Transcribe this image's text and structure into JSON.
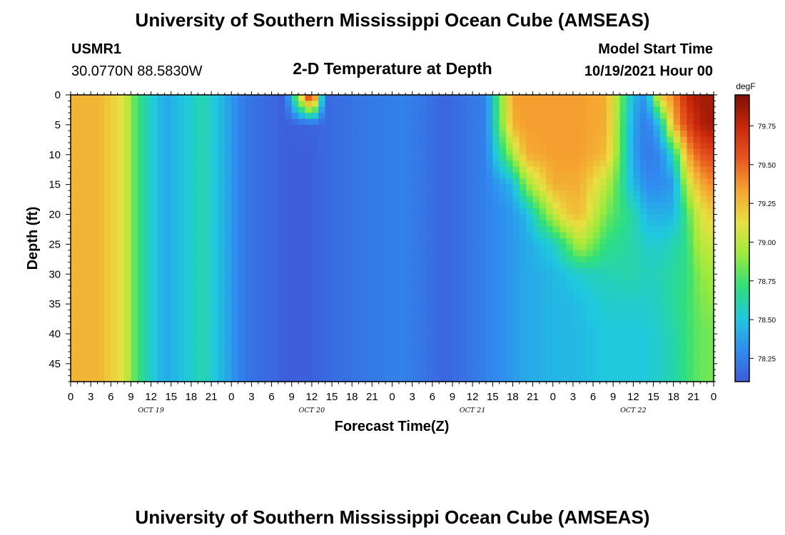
{
  "header": {
    "title": "University of Southern Mississippi Ocean Cube (AMSEAS)",
    "station": "USMR1",
    "coords": "30.0770N  88.5830W",
    "plot_title": "2-D Temperature at Depth",
    "model_label": "Model Start Time",
    "model_time": "10/19/2021 Hour 00"
  },
  "footer": {
    "title": "University of Southern Mississippi Ocean Cube (AMSEAS)"
  },
  "chart_data": {
    "type": "heatmap",
    "xlabel": "Forecast Time(Z)",
    "ylabel": "Depth (ft)",
    "x_range_hours": [
      0,
      96
    ],
    "ylim": [
      0,
      48
    ],
    "y_axis_inverted": true,
    "x_tick_labels": [
      "0",
      "3",
      "6",
      "9",
      "12",
      "15",
      "18",
      "21",
      "0",
      "3",
      "6",
      "9",
      "12",
      "15",
      "18",
      "21",
      "0",
      "3",
      "6",
      "9",
      "12",
      "15",
      "18",
      "21",
      "0",
      "3",
      "6",
      "9",
      "12",
      "15",
      "18",
      "21",
      "0"
    ],
    "day_labels": [
      "OCT 19",
      "OCT 20",
      "OCT 21",
      "OCT 22"
    ],
    "y_ticks": [
      0,
      5,
      10,
      15,
      20,
      25,
      30,
      35,
      40,
      45
    ],
    "colorbar": {
      "unit": "degF",
      "range": [
        78.1,
        79.95
      ],
      "ticks": [
        78.25,
        78.5,
        78.75,
        79.0,
        79.25,
        79.5,
        79.75
      ],
      "tick_labels": [
        "78.25",
        "78.50",
        "78.75",
        "79.00",
        "79.25",
        "79.50",
        "79.75"
      ]
    },
    "colormap": [
      "#3e5bd8",
      "#2f8df0",
      "#1fc8df",
      "#2fe07a",
      "#9eea3c",
      "#e8e040",
      "#f5a430",
      "#e7561e",
      "#c8280a",
      "#7c0f05"
    ],
    "temperature_grid": {
      "time_hours": [
        0,
        4,
        8,
        10,
        14,
        20,
        26,
        32,
        36,
        38,
        44,
        50,
        56,
        62,
        66,
        68,
        72,
        74,
        76,
        80,
        84,
        86,
        88,
        90,
        92,
        94,
        96
      ],
      "depth_ft": [
        0,
        5,
        10,
        15,
        20,
        25,
        30,
        35,
        40,
        48
      ],
      "values_degF": [
        [
          79.28,
          79.28,
          79.28,
          79.28,
          79.28,
          79.28,
          79.28,
          79.28,
          79.28,
          79.28
        ],
        [
          79.28,
          79.28,
          79.28,
          79.28,
          79.28,
          79.28,
          79.28,
          79.28,
          79.28,
          79.28
        ],
        [
          79.1,
          79.1,
          79.1,
          79.1,
          79.1,
          79.1,
          79.1,
          79.1,
          79.1,
          79.1
        ],
        [
          78.72,
          78.72,
          78.72,
          78.72,
          78.72,
          78.72,
          78.72,
          78.72,
          78.72,
          78.72
        ],
        [
          78.4,
          78.4,
          78.4,
          78.4,
          78.4,
          78.4,
          78.4,
          78.4,
          78.4,
          78.4
        ],
        [
          78.62,
          78.62,
          78.62,
          78.62,
          78.62,
          78.62,
          78.62,
          78.62,
          78.62,
          78.62
        ],
        [
          78.22,
          78.22,
          78.22,
          78.22,
          78.22,
          78.22,
          78.22,
          78.22,
          78.22,
          78.22
        ],
        [
          78.12,
          78.12,
          78.12,
          78.12,
          78.12,
          78.12,
          78.12,
          78.12,
          78.12,
          78.12
        ],
        [
          79.9,
          78.14,
          78.12,
          78.12,
          78.12,
          78.12,
          78.12,
          78.12,
          78.12,
          78.12
        ],
        [
          78.16,
          78.16,
          78.16,
          78.16,
          78.16,
          78.16,
          78.16,
          78.16,
          78.16,
          78.16
        ],
        [
          78.22,
          78.22,
          78.22,
          78.22,
          78.22,
          78.22,
          78.22,
          78.22,
          78.22,
          78.22
        ],
        [
          78.26,
          78.26,
          78.26,
          78.26,
          78.26,
          78.26,
          78.26,
          78.26,
          78.26,
          78.26
        ],
        [
          78.14,
          78.14,
          78.14,
          78.14,
          78.14,
          78.14,
          78.14,
          78.14,
          78.14,
          78.14
        ],
        [
          78.26,
          78.26,
          78.26,
          78.26,
          78.26,
          78.26,
          78.26,
          78.26,
          78.26,
          78.26
        ],
        [
          79.35,
          79.3,
          78.95,
          78.45,
          78.35,
          78.35,
          78.35,
          78.35,
          78.35,
          78.35
        ],
        [
          79.35,
          79.35,
          79.3,
          78.9,
          78.45,
          78.4,
          78.4,
          78.4,
          78.4,
          78.4
        ],
        [
          79.35,
          79.35,
          79.35,
          79.3,
          79.0,
          78.55,
          78.45,
          78.45,
          78.45,
          78.45
        ],
        [
          79.35,
          79.35,
          79.35,
          79.3,
          79.2,
          78.75,
          78.5,
          78.45,
          78.45,
          78.45
        ],
        [
          79.35,
          79.35,
          79.35,
          79.3,
          79.25,
          79.0,
          78.55,
          78.48,
          78.46,
          78.46
        ],
        [
          79.3,
          79.3,
          79.25,
          79.0,
          78.85,
          78.7,
          78.6,
          78.55,
          78.52,
          78.52
        ],
        [
          78.45,
          78.38,
          78.38,
          78.45,
          78.62,
          78.62,
          78.62,
          78.55,
          78.52,
          78.52
        ],
        [
          78.32,
          78.22,
          78.22,
          78.3,
          78.45,
          78.55,
          78.58,
          78.55,
          78.52,
          78.52
        ],
        [
          79.25,
          78.5,
          78.28,
          78.3,
          78.42,
          78.55,
          78.6,
          78.58,
          78.56,
          78.56
        ],
        [
          79.4,
          79.3,
          78.6,
          78.35,
          78.45,
          78.6,
          78.65,
          78.65,
          78.62,
          78.62
        ],
        [
          79.75,
          79.6,
          79.3,
          79.0,
          78.75,
          78.7,
          78.7,
          78.72,
          78.72,
          78.72
        ],
        [
          79.85,
          79.8,
          79.55,
          79.3,
          79.1,
          79.0,
          78.9,
          78.85,
          78.82,
          78.82
        ],
        [
          79.85,
          79.85,
          79.6,
          79.4,
          79.2,
          79.05,
          78.95,
          78.9,
          78.85,
          78.85
        ]
      ]
    }
  }
}
